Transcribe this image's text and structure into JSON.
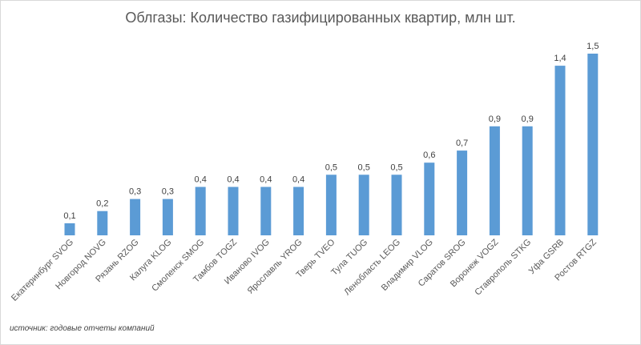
{
  "chart_data": {
    "type": "bar",
    "title": "Облгазы: Количество газифицированных квартир, млн шт.",
    "categories": [
      "Екатеринбург SVOG",
      "Новгород NOVG",
      "Рязань RZOG",
      "Калуга KLOG",
      "Смоленск SMOG",
      "Тамбов TOGZ",
      "Иваново IVOG",
      "Ярославль YROG",
      "Тверь TVEO",
      "Тула TUOG",
      "Ленобласть LEOG",
      "Владимир VLOG",
      "Саратов SROG",
      "Воронеж VOGZ",
      "Ставрополь STKG",
      "Уфа GSRB",
      "Ростов RTGZ"
    ],
    "values": [
      0.1,
      0.2,
      0.3,
      0.3,
      0.4,
      0.4,
      0.4,
      0.4,
      0.5,
      0.5,
      0.5,
      0.6,
      0.7,
      0.9,
      0.9,
      1.4,
      1.5
    ],
    "value_labels": [
      "0,1",
      "0,2",
      "0,3",
      "0,3",
      "0,4",
      "0,4",
      "0,4",
      "0,4",
      "0,5",
      "0,5",
      "0,5",
      "0,6",
      "0,7",
      "0,9",
      "0,9",
      "1,4",
      "1,5"
    ],
    "ylim": [
      0,
      1.5
    ],
    "bar_color": "#5b9bd5",
    "grid": false,
    "legend": "none",
    "source": "источник: годовые отчеты компаний"
  }
}
